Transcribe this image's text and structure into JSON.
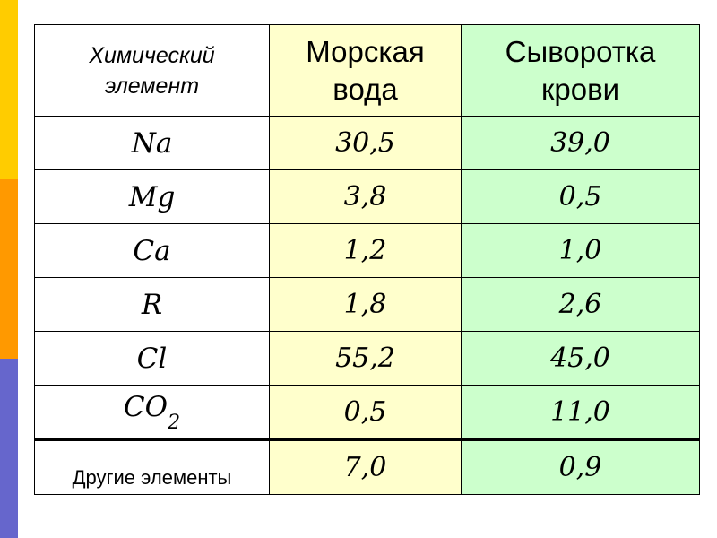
{
  "table": {
    "header": {
      "element": "Химический элемент",
      "sea": "Морская вода",
      "serum": "Сыворотка крови"
    },
    "rows": [
      {
        "element": "Na",
        "sea": "30,5",
        "serum": "39,0"
      },
      {
        "element": "Mg",
        "sea": "3,8",
        "serum": "0,5"
      },
      {
        "element": "Ca",
        "sea": "1,2",
        "serum": "1,0"
      },
      {
        "element": "R",
        "sea": "1,8",
        "serum": "2,6"
      },
      {
        "element": "Cl",
        "sea": "55,2",
        "serum": "45,0"
      },
      {
        "element_main": "CO",
        "element_sub": "2",
        "sea": "0,5",
        "serum": "11,0"
      }
    ],
    "last_row": {
      "element": "Другие элементы",
      "sea": "7,0",
      "serum": "0,9"
    }
  },
  "colors": {
    "sea_column": "#FFFFCC",
    "serum_column": "#CCFFCC",
    "bar_top": "#FFCC00",
    "bar_middle": "#FF9900",
    "bar_bottom": "#6666CC"
  }
}
